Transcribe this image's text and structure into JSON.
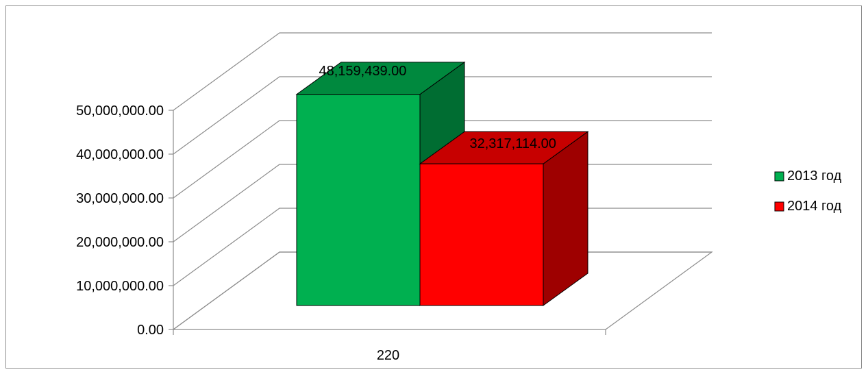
{
  "chart_data": {
    "type": "bar",
    "style": "3d-clustered",
    "categories": [
      "220"
    ],
    "series": [
      {
        "name": "2013 год",
        "values": [
          48159439.0
        ],
        "label": "48,159,439.00",
        "color": "#00b050"
      },
      {
        "name": "2014 год",
        "values": [
          32317114.0
        ],
        "label": "32,317,114.00",
        "color": "#ff0000"
      }
    ],
    "y_ticks": [
      "0.00",
      "10,000,000.00",
      "20,000,000.00",
      "30,000,000.00",
      "40,000,000.00",
      "50,000,000.00"
    ],
    "ylim": [
      0,
      50000000
    ],
    "grid": true,
    "legend_position": "right"
  }
}
